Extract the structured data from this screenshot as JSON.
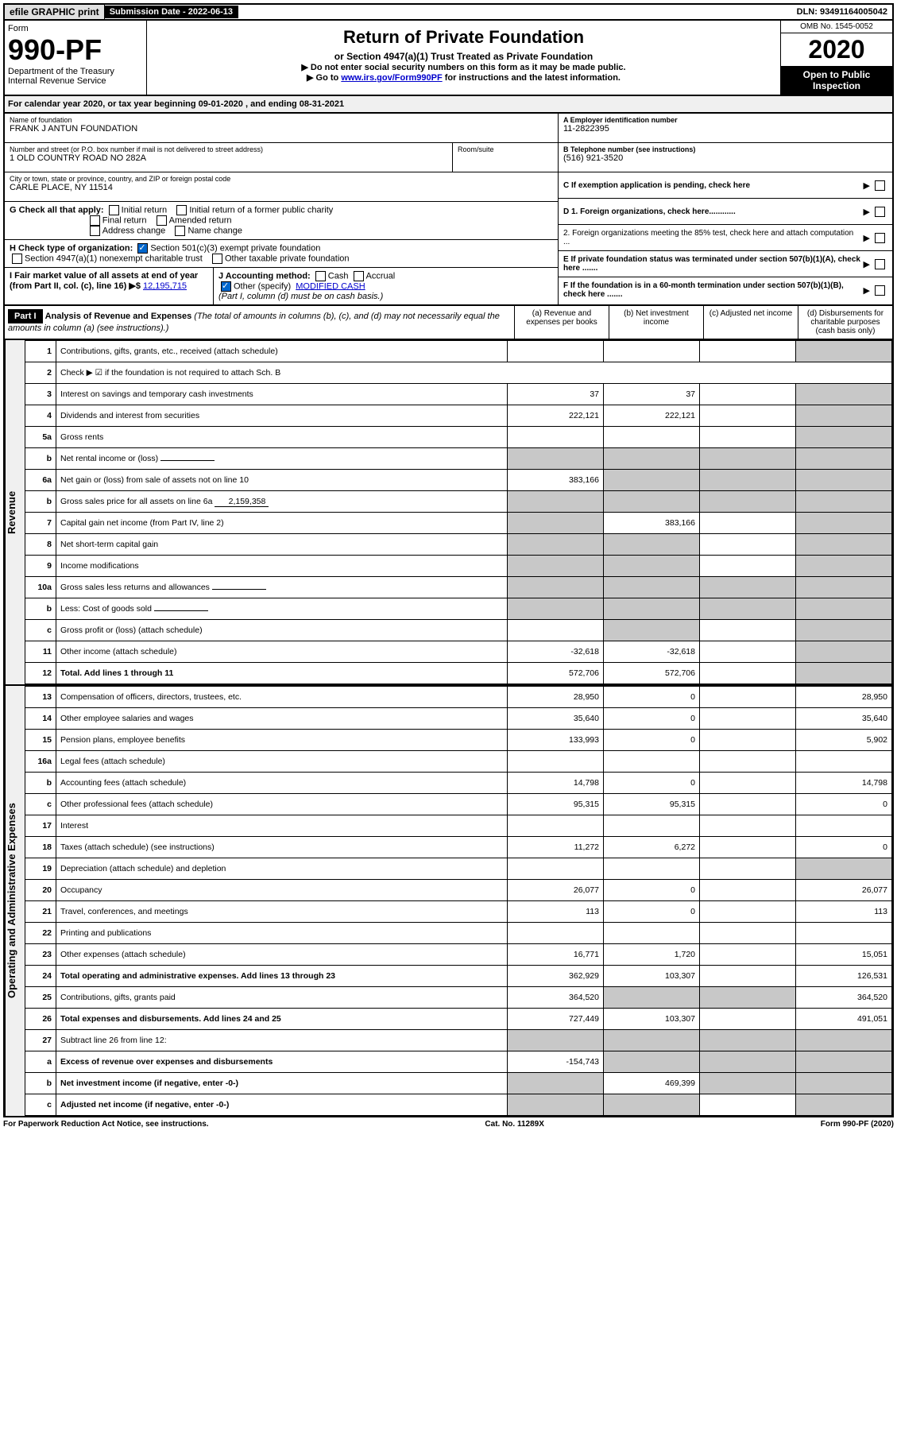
{
  "top": {
    "efile": "efile GRAPHIC print",
    "submission_label": "Submission Date - 2022-06-13",
    "dln": "DLN: 93491164005042"
  },
  "header": {
    "form_label": "Form",
    "form_number": "990-PF",
    "dept": "Department of the Treasury",
    "irs": "Internal Revenue Service",
    "title": "Return of Private Foundation",
    "subtitle": "or Section 4947(a)(1) Trust Treated as Private Foundation",
    "note1": "▶ Do not enter social security numbers on this form as it may be made public.",
    "note2_pre": "▶ Go to ",
    "note2_link": "www.irs.gov/Form990PF",
    "note2_post": " for instructions and the latest information.",
    "omb": "OMB No. 1545-0052",
    "year": "2020",
    "open": "Open to Public Inspection"
  },
  "calyear": "For calendar year 2020, or tax year beginning 09-01-2020                     , and ending 08-31-2021",
  "info": {
    "name_label": "Name of foundation",
    "name": "FRANK J ANTUN FOUNDATION",
    "addr_label": "Number and street (or P.O. box number if mail is not delivered to street address)",
    "addr": "1 OLD COUNTRY ROAD NO 282A",
    "room_label": "Room/suite",
    "city_label": "City or town, state or province, country, and ZIP or foreign postal code",
    "city": "CARLE PLACE, NY  11514",
    "a_label": "A Employer identification number",
    "a_value": "11-2822395",
    "b_label": "B Telephone number (see instructions)",
    "b_value": "(516) 921-3520",
    "c_label": "C If exemption application is pending, check here",
    "d1": "D 1. Foreign organizations, check here............",
    "d2": "2. Foreign organizations meeting the 85% test, check here and attach computation ...",
    "e": "E If private foundation status was terminated under section 507(b)(1)(A), check here .......",
    "f": "F If the foundation is in a 60-month termination under section 507(b)(1)(B), check here .......",
    "g_label": "G Check all that apply:",
    "g_opts": [
      "Initial return",
      "Initial return of a former public charity",
      "Final return",
      "Amended return",
      "Address change",
      "Name change"
    ],
    "h_label": "H Check type of organization:",
    "h_opts": [
      "Section 501(c)(3) exempt private foundation",
      "Section 4947(a)(1) nonexempt charitable trust",
      "Other taxable private foundation"
    ],
    "i_label": "I Fair market value of all assets at end of year (from Part II, col. (c), line 16) ▶$ ",
    "i_value": "12,195,715",
    "j_label": "J Accounting method:",
    "j_cash": "Cash",
    "j_accrual": "Accrual",
    "j_other": "Other (specify)",
    "j_other_val": "MODIFIED CASH",
    "j_note": "(Part I, column (d) must be on cash basis.)"
  },
  "partI": {
    "label": "Part I",
    "title": "Analysis of Revenue and Expenses",
    "title_note": "(The total of amounts in columns (b), (c), and (d) may not necessarily equal the amounts in column (a) (see instructions).)",
    "cols": {
      "a": "(a) Revenue and expenses per books",
      "b": "(b) Net investment income",
      "c": "(c) Adjusted net income",
      "d": "(d) Disbursements for charitable purposes (cash basis only)"
    }
  },
  "sections": {
    "revenue": "Revenue",
    "expenses": "Operating and Administrative Expenses"
  },
  "rows": [
    {
      "n": "1",
      "desc": "Contributions, gifts, grants, etc., received (attach schedule)",
      "a": "",
      "b": "",
      "c": "",
      "d": "grey"
    },
    {
      "n": "2",
      "desc": "Check ▶ ☑ if the foundation is not required to attach Sch. B",
      "span": true
    },
    {
      "n": "3",
      "desc": "Interest on savings and temporary cash investments",
      "a": "37",
      "b": "37",
      "c": "",
      "d": "grey"
    },
    {
      "n": "4",
      "desc": "Dividends and interest from securities",
      "a": "222,121",
      "b": "222,121",
      "c": "",
      "d": "grey"
    },
    {
      "n": "5a",
      "desc": "Gross rents",
      "a": "",
      "b": "",
      "c": "",
      "d": "grey"
    },
    {
      "n": "b",
      "desc": "Net rental income or (loss)",
      "inline": "",
      "greyall": true
    },
    {
      "n": "6a",
      "desc": "Net gain or (loss) from sale of assets not on line 10",
      "a": "383,166",
      "greyrest": true
    },
    {
      "n": "b",
      "desc": "Gross sales price for all assets on line 6a",
      "inline": "2,159,358",
      "greyall": true
    },
    {
      "n": "7",
      "desc": "Capital gain net income (from Part IV, line 2)",
      "agrey": true,
      "b": "383,166",
      "c": "",
      "d": "grey"
    },
    {
      "n": "8",
      "desc": "Net short-term capital gain",
      "agrey": true,
      "bgrey": true,
      "c": "",
      "d": "grey"
    },
    {
      "n": "9",
      "desc": "Income modifications",
      "agrey": true,
      "bgrey": true,
      "c": "",
      "d": "grey"
    },
    {
      "n": "10a",
      "desc": "Gross sales less returns and allowances",
      "inline": "",
      "greyall": true
    },
    {
      "n": "b",
      "desc": "Less: Cost of goods sold",
      "inline": "",
      "greyall": true
    },
    {
      "n": "c",
      "desc": "Gross profit or (loss) (attach schedule)",
      "a": "",
      "bgrey": true,
      "c": "",
      "d": "grey"
    },
    {
      "n": "11",
      "desc": "Other income (attach schedule)",
      "a": "-32,618",
      "b": "-32,618",
      "c": "",
      "d": "grey"
    },
    {
      "n": "12",
      "desc": "Total. Add lines 1 through 11",
      "bold": true,
      "a": "572,706",
      "b": "572,706",
      "c": "",
      "d": "grey"
    }
  ],
  "exp_rows": [
    {
      "n": "13",
      "desc": "Compensation of officers, directors, trustees, etc.",
      "a": "28,950",
      "b": "0",
      "c": "",
      "d": "28,950"
    },
    {
      "n": "14",
      "desc": "Other employee salaries and wages",
      "a": "35,640",
      "b": "0",
      "c": "",
      "d": "35,640"
    },
    {
      "n": "15",
      "desc": "Pension plans, employee benefits",
      "a": "133,993",
      "b": "0",
      "c": "",
      "d": "5,902"
    },
    {
      "n": "16a",
      "desc": "Legal fees (attach schedule)",
      "a": "",
      "b": "",
      "c": "",
      "d": ""
    },
    {
      "n": "b",
      "desc": "Accounting fees (attach schedule)",
      "a": "14,798",
      "b": "0",
      "c": "",
      "d": "14,798"
    },
    {
      "n": "c",
      "desc": "Other professional fees (attach schedule)",
      "a": "95,315",
      "b": "95,315",
      "c": "",
      "d": "0"
    },
    {
      "n": "17",
      "desc": "Interest",
      "a": "",
      "b": "",
      "c": "",
      "d": ""
    },
    {
      "n": "18",
      "desc": "Taxes (attach schedule) (see instructions)",
      "a": "11,272",
      "b": "6,272",
      "c": "",
      "d": "0"
    },
    {
      "n": "19",
      "desc": "Depreciation (attach schedule) and depletion",
      "a": "",
      "b": "",
      "c": "",
      "d": "grey"
    },
    {
      "n": "20",
      "desc": "Occupancy",
      "a": "26,077",
      "b": "0",
      "c": "",
      "d": "26,077"
    },
    {
      "n": "21",
      "desc": "Travel, conferences, and meetings",
      "a": "113",
      "b": "0",
      "c": "",
      "d": "113"
    },
    {
      "n": "22",
      "desc": "Printing and publications",
      "a": "",
      "b": "",
      "c": "",
      "d": ""
    },
    {
      "n": "23",
      "desc": "Other expenses (attach schedule)",
      "a": "16,771",
      "b": "1,720",
      "c": "",
      "d": "15,051"
    },
    {
      "n": "24",
      "desc": "Total operating and administrative expenses. Add lines 13 through 23",
      "bold": true,
      "a": "362,929",
      "b": "103,307",
      "c": "",
      "d": "126,531"
    },
    {
      "n": "25",
      "desc": "Contributions, gifts, grants paid",
      "a": "364,520",
      "bgrey": true,
      "cgrey": true,
      "d": "364,520"
    },
    {
      "n": "26",
      "desc": "Total expenses and disbursements. Add lines 24 and 25",
      "bold": true,
      "a": "727,449",
      "b": "103,307",
      "c": "",
      "d": "491,051"
    },
    {
      "n": "27",
      "desc": "Subtract line 26 from line 12:",
      "greyall": true
    },
    {
      "n": "a",
      "desc": "Excess of revenue over expenses and disbursements",
      "bold": true,
      "a": "-154,743",
      "greyrest": true
    },
    {
      "n": "b",
      "desc": "Net investment income (if negative, enter -0-)",
      "bold": true,
      "agrey": true,
      "b": "469,399",
      "cgrey": true,
      "d": "grey"
    },
    {
      "n": "c",
      "desc": "Adjusted net income (if negative, enter -0-)",
      "bold": true,
      "agrey": true,
      "bgrey": true,
      "c": "",
      "d": "grey"
    }
  ],
  "footer": {
    "left": "For Paperwork Reduction Act Notice, see instructions.",
    "mid": "Cat. No. 11289X",
    "right": "Form 990-PF (2020)"
  }
}
